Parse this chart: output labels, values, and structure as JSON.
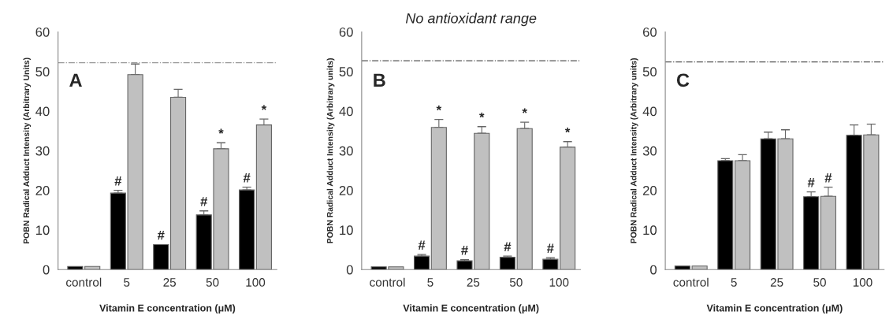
{
  "chart_data": [
    {
      "type": "bar",
      "ylabel": "POBN Radical Adduct Intensity (Arbitrary Units)",
      "xlabel": "Vitamin E concentration (μM)",
      "categories": [
        "control",
        "5",
        "25",
        "50",
        "100"
      ],
      "series": [
        {
          "color": "#000000",
          "values": [
            0.8,
            19.3,
            6.3,
            13.8,
            20.1
          ],
          "errors": [
            null,
            0.7,
            null,
            1.0,
            0.7
          ]
        },
        {
          "color": "#c0c0c0",
          "values": [
            0.8,
            49.2,
            43.5,
            30.5,
            36.5
          ],
          "errors": [
            null,
            2.7,
            2.0,
            1.5,
            1.5
          ]
        }
      ],
      "ylim": [
        0,
        60
      ],
      "yticks": [
        0,
        10,
        20,
        30,
        40,
        50,
        60
      ],
      "ref_lines": [
        {
          "axis": "y",
          "value": 52.2,
          "line_style": "dashdot",
          "color": "#999999"
        }
      ],
      "annotations": [
        "A",
        {
          "text": "#",
          "x": "5",
          "y": 19.3
        },
        {
          "text": "#",
          "x": "25",
          "y": 6.3
        },
        {
          "text": "#",
          "x": "50",
          "y": 13.8
        },
        {
          "text": "#",
          "x": "100",
          "y": 20.1
        },
        {
          "text": "*",
          "x": "50",
          "y": 30.5
        },
        {
          "text": "*",
          "x": "100",
          "y": 36.5
        }
      ]
    },
    {
      "type": "bar",
      "title": "No antioxidant range",
      "ylabel": "POBN Radical Adduct Intensity (Arbitrary units)",
      "xlabel": "Vitamin E concentration (μM)",
      "categories": [
        "control",
        "5",
        "25",
        "50",
        "100"
      ],
      "series": [
        {
          "color": "#000000",
          "values": [
            0.7,
            3.4,
            2.2,
            3.1,
            2.6
          ],
          "errors": [
            null,
            0.4,
            0.3,
            0.3,
            0.4
          ]
        },
        {
          "color": "#c0c0c0",
          "values": [
            0.7,
            35.9,
            34.4,
            35.6,
            30.9
          ],
          "errors": [
            null,
            2.0,
            1.7,
            1.6,
            1.4
          ]
        }
      ],
      "ylim": [
        0,
        60
      ],
      "yticks": [
        0,
        10,
        20,
        30,
        40,
        50,
        60
      ],
      "ref_lines": [
        {
          "axis": "y",
          "value": 52.7,
          "line_style": "dashdot",
          "color": "#555555"
        }
      ],
      "annotations": [
        "B",
        {
          "text": "#",
          "x": "5",
          "y": 3.4
        },
        {
          "text": "#",
          "x": "25",
          "y": 2.2
        },
        {
          "text": "#",
          "x": "50",
          "y": 3.1
        },
        {
          "text": "#",
          "x": "100",
          "y": 2.6
        },
        {
          "text": "*",
          "x": "5",
          "y": 35.9
        },
        {
          "text": "*",
          "x": "25",
          "y": 34.4
        },
        {
          "text": "*",
          "x": "50",
          "y": 35.6
        },
        {
          "text": "*",
          "x": "100",
          "y": 30.9
        }
      ]
    },
    {
      "type": "bar",
      "ylabel": "POBN Radical Adduct Intensity (Arbitrary units)",
      "xlabel": "Vitamin E concentration (μM)",
      "categories": [
        "control",
        "5",
        "25",
        "50",
        "100"
      ],
      "series": [
        {
          "color": "#000000",
          "values": [
            0.9,
            27.5,
            33.0,
            18.4,
            33.9
          ],
          "errors": [
            null,
            0.5,
            1.7,
            1.2,
            2.6
          ]
        },
        {
          "color": "#c0c0c0",
          "values": [
            0.9,
            27.5,
            33.0,
            18.5,
            34.0
          ],
          "errors": [
            null,
            1.5,
            2.3,
            2.3,
            2.7
          ]
        }
      ],
      "ylim": [
        0,
        60
      ],
      "yticks": [
        0,
        10,
        20,
        30,
        40,
        50,
        60
      ],
      "ref_lines": [
        {
          "axis": "y",
          "value": 52.4,
          "line_style": "dashdot",
          "color": "#555555"
        }
      ],
      "annotations": [
        "C",
        {
          "text": "#",
          "x": "50",
          "y": 18.4
        },
        {
          "text": "#",
          "x": "50",
          "y": 18.5
        }
      ]
    }
  ]
}
